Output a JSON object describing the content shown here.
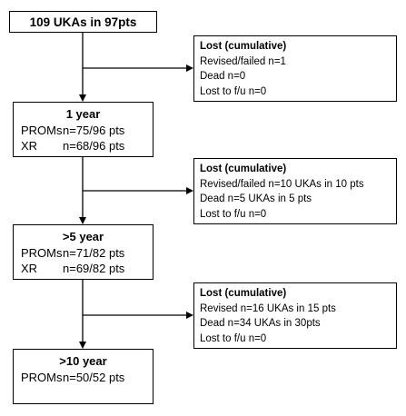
{
  "start": {
    "label": "109 UKAs in 97pts"
  },
  "year1": {
    "title": "1 year",
    "rows": [
      {
        "key": "PROMs",
        "value": "n=75/96 pts"
      },
      {
        "key": "XR",
        "value": "n=68/96 pts"
      }
    ]
  },
  "lost1": {
    "title": "Lost (cumulative)",
    "lines": [
      "Revised/failed n=1",
      "Dead n=0",
      "Lost to f/u n=0"
    ]
  },
  "year5": {
    "title": ">5 year",
    "rows": [
      {
        "key": "PROMs",
        "value": "n=71/82 pts"
      },
      {
        "key": "XR",
        "value": "n=69/82 pts"
      }
    ]
  },
  "lost2": {
    "title": "Lost (cumulative)",
    "lines": [
      "Revised/failed n=10 UKAs in 10 pts",
      "Dead n=5 UKAs in 5 pts",
      "Lost to f/u n=0"
    ]
  },
  "lost3": {
    "title": "Lost (cumulative)",
    "lines": [
      "Revised n=16 UKAs in 15 pts",
      "Dead n=34 UKAs in 30pts",
      "Lost to f/u n=0"
    ]
  },
  "year10": {
    "title": ">10 year",
    "rows": [
      {
        "key": "PROMs",
        "value": "n=50/52 pts"
      }
    ]
  }
}
